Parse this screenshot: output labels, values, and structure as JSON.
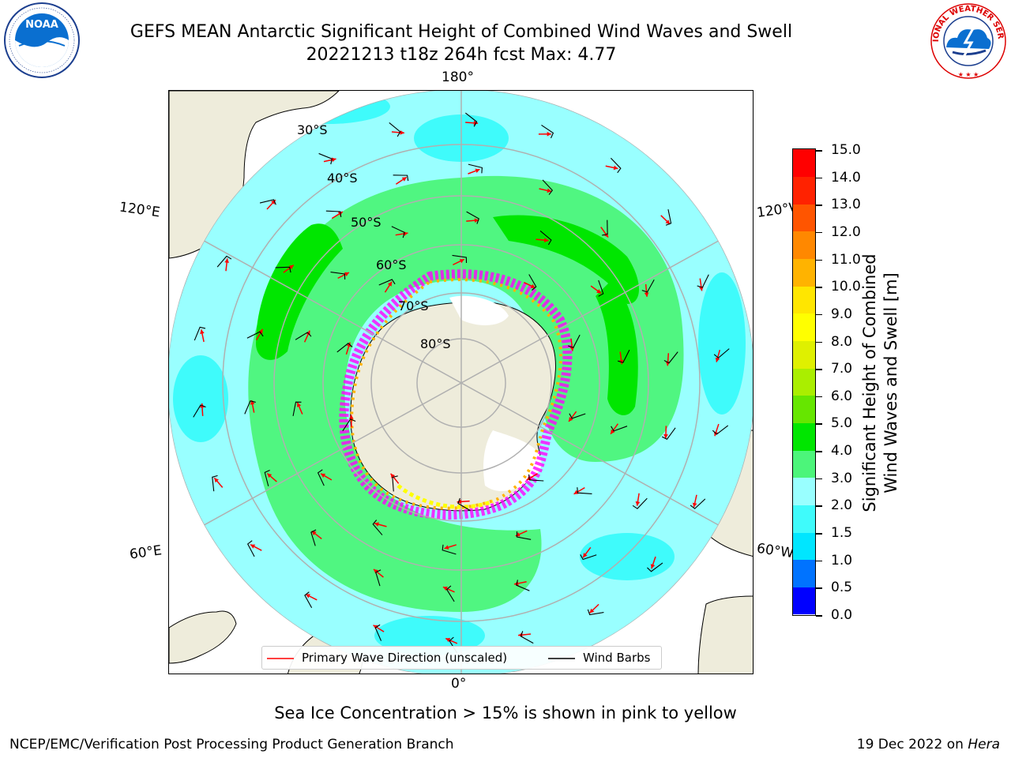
{
  "title": {
    "line1": "GEFS MEAN Antarctic Significant Height of Combined Wind Waves and Swell",
    "line2": "20221213 t18z 264h fcst   Max: 4.77"
  },
  "logos": {
    "left": {
      "name": "NOAA",
      "ring_text": "NATIONAL OCEANIC AND ATMOSPHERIC ADMINISTRATION · U.S. DEPARTMENT OF COMMERCE"
    },
    "right": {
      "name": "National Weather Service",
      "ring_text": "NATIONAL WEATHER SERVICE"
    }
  },
  "map": {
    "projection": "south polar stereographic",
    "longitude_labels": {
      "top": "180°",
      "bottom": "0°",
      "upper_left": "120°E",
      "upper_right": "120°W",
      "lower_left": "60°E",
      "lower_right": "60°W"
    },
    "latitude_labels": [
      "30°S",
      "40°S",
      "50°S",
      "60°S",
      "70°S",
      "80°S"
    ],
    "colors": {
      "land": "#eeecdb",
      "ice_low": "#ff00ff",
      "ice_high": "#ffff00",
      "arrows": "#ff0000",
      "barbs": "#000000"
    }
  },
  "legend": {
    "primary_wave": "Primary Wave Direction (unscaled)",
    "wind_barbs": "Wind Barbs"
  },
  "colorbar": {
    "title_line1": "Significant Height of Combined",
    "title_line2": "Wind Waves and Swell [m]",
    "ticks": [
      "0.0",
      "0.5",
      "1.0",
      "1.5",
      "2.0",
      "3.0",
      "4.0",
      "5.0",
      "6.0",
      "7.0",
      "8.0",
      "9.0",
      "10.0",
      "11.0",
      "12.0",
      "13.0",
      "14.0",
      "15.0"
    ],
    "colors": [
      "#0000ff",
      "#0073ff",
      "#00e6ff",
      "#3ffbfb",
      "#99ffff",
      "#4cf57a",
      "#00e600",
      "#66e600",
      "#aaee00",
      "#dff000",
      "#ffff00",
      "#ffe600",
      "#ffb300",
      "#ff8800",
      "#ff5500",
      "#ff2200",
      "#ff0000"
    ]
  },
  "caption": "Sea Ice Concentration > 15% is shown in pink to yellow",
  "credit_left": "NCEP/EMC/Verification Post Processing Product Generation Branch",
  "credit_right_date": "19 Dec 2022 on ",
  "credit_right_host": "Hera"
}
